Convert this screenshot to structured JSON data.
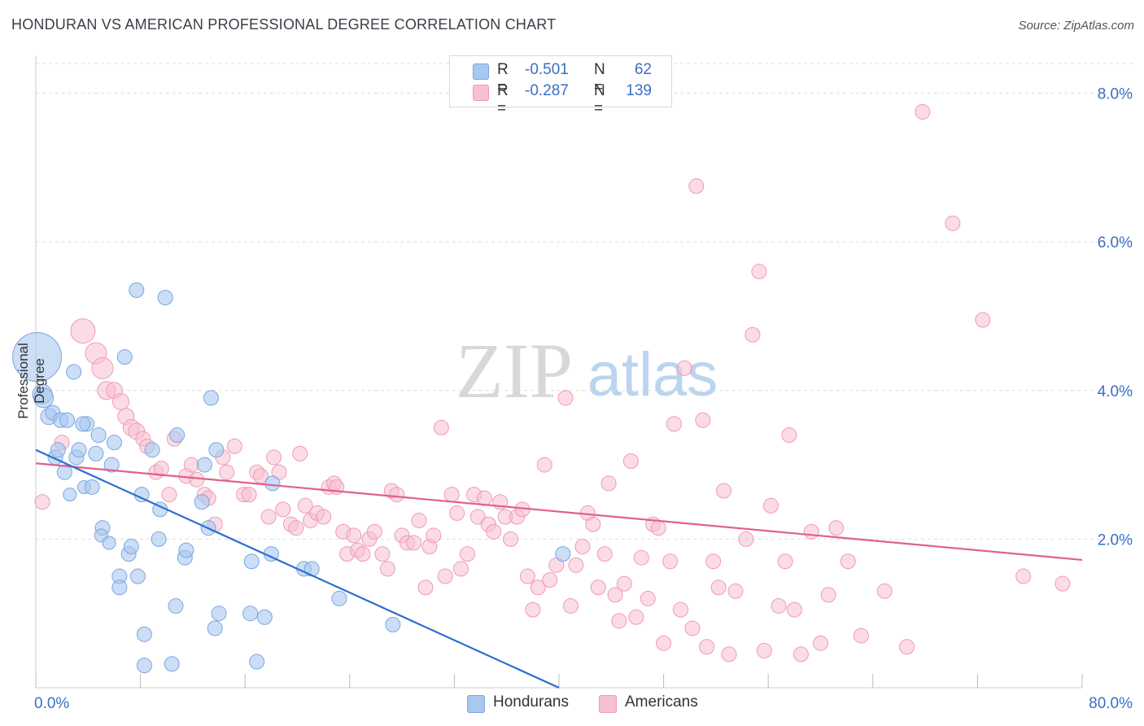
{
  "title": "HONDURAN VS AMERICAN PROFESSIONAL DEGREE CORRELATION CHART",
  "source": "Source: ZipAtlas.com",
  "watermark": {
    "zip": "ZIP",
    "atlas": "atlas"
  },
  "colors": {
    "blue_fill": "#a9c8f0",
    "blue_stroke": "#7aa6e0",
    "blue_line": "#2b6fd0",
    "pink_fill": "#f7c0d0",
    "pink_stroke": "#ef9ab4",
    "pink_line": "#e0608c",
    "tick_text": "#3a6fc4",
    "grid": "#dedede"
  },
  "stats": {
    "honduran": {
      "r_label": "R =",
      "r_value": "-0.501",
      "n_label": "N =",
      "n_value": "62"
    },
    "american": {
      "r_label": "R =",
      "r_value": "-0.287",
      "n_label": "N =",
      "n_value": "139"
    }
  },
  "legend": {
    "honduran": "Hondurans",
    "american": "Americans"
  },
  "chart_data": {
    "type": "scatter",
    "title": "HONDURAN VS AMERICAN PROFESSIONAL DEGREE CORRELATION CHART",
    "xlabel": "",
    "ylabel": "Professional Degree",
    "xlim": [
      0,
      80
    ],
    "ylim": [
      0,
      8.4
    ],
    "x_tick_labels": {
      "min": "0.0%",
      "max": "80.0%"
    },
    "y_ticks": [
      {
        "value": 2,
        "label": "2.0%"
      },
      {
        "value": 4,
        "label": "4.0%"
      },
      {
        "value": 6,
        "label": "6.0%"
      },
      {
        "value": 8,
        "label": "8.0%"
      }
    ],
    "grid": true,
    "legend_position": "bottom",
    "series": [
      {
        "name": "Hondurans",
        "r": -0.501,
        "n": 62,
        "trend": [
          [
            0,
            3.2
          ],
          [
            40,
            0.0
          ]
        ],
        "points": [
          [
            0.1,
            4.45,
            30
          ],
          [
            0.5,
            3.95,
            12
          ],
          [
            0.6,
            3.9,
            12
          ],
          [
            1.0,
            3.65,
            10
          ],
          [
            1.3,
            3.7,
            9
          ],
          [
            1.5,
            3.1,
            9
          ],
          [
            1.7,
            3.2,
            9
          ],
          [
            1.9,
            3.6,
            9
          ],
          [
            2.2,
            2.9,
            9
          ],
          [
            2.6,
            2.6,
            8
          ],
          [
            2.9,
            4.25,
            9
          ],
          [
            3.1,
            3.1,
            9
          ],
          [
            2.4,
            3.6,
            9
          ],
          [
            3.3,
            3.2,
            9
          ],
          [
            3.7,
            2.7,
            8
          ],
          [
            3.9,
            3.55,
            9
          ],
          [
            4.3,
            2.7,
            9
          ],
          [
            4.6,
            3.15,
            9
          ],
          [
            4.8,
            3.4,
            9
          ],
          [
            5.1,
            2.15,
            9
          ],
          [
            5.0,
            2.05,
            8
          ],
          [
            5.6,
            1.95,
            8
          ],
          [
            5.8,
            3.0,
            9
          ],
          [
            6.0,
            3.3,
            9
          ],
          [
            6.4,
            1.5,
            9
          ],
          [
            6.4,
            1.35,
            9
          ],
          [
            6.8,
            4.45,
            9
          ],
          [
            7.1,
            1.8,
            9
          ],
          [
            7.3,
            1.9,
            9
          ],
          [
            7.7,
            5.35,
            9
          ],
          [
            7.8,
            1.5,
            9
          ],
          [
            8.1,
            2.6,
            9
          ],
          [
            8.3,
            0.3,
            9
          ],
          [
            8.3,
            0.72,
            9
          ],
          [
            8.9,
            3.2,
            9
          ],
          [
            9.4,
            2.0,
            9
          ],
          [
            9.5,
            2.4,
            9
          ],
          [
            9.9,
            5.25,
            9
          ],
          [
            10.4,
            0.32,
            9
          ],
          [
            10.7,
            1.1,
            9
          ],
          [
            10.8,
            3.4,
            9
          ],
          [
            11.4,
            1.75,
            9
          ],
          [
            11.5,
            1.85,
            9
          ],
          [
            12.7,
            2.5,
            9
          ],
          [
            12.9,
            3.0,
            9
          ],
          [
            13.2,
            2.15,
            9
          ],
          [
            13.4,
            3.9,
            9
          ],
          [
            13.7,
            0.8,
            9
          ],
          [
            13.8,
            3.2,
            9
          ],
          [
            14.0,
            1.0,
            9
          ],
          [
            16.4,
            1.0,
            9
          ],
          [
            16.5,
            1.7,
            9
          ],
          [
            16.9,
            0.35,
            9
          ],
          [
            17.5,
            0.95,
            9
          ],
          [
            18.0,
            1.8,
            9
          ],
          [
            18.1,
            2.75,
            9
          ],
          [
            20.5,
            1.6,
            9
          ],
          [
            21.1,
            1.6,
            9
          ],
          [
            23.2,
            1.2,
            9
          ],
          [
            27.3,
            0.85,
            9
          ],
          [
            40.3,
            1.8,
            9
          ],
          [
            3.6,
            3.55,
            9
          ]
        ]
      },
      {
        "name": "Americans",
        "r": -0.287,
        "n": 139,
        "trend": [
          [
            0,
            3.02
          ],
          [
            80,
            1.72
          ]
        ],
        "points": [
          [
            0.5,
            2.5,
            9
          ],
          [
            2.0,
            3.3,
            9
          ],
          [
            3.6,
            4.8,
            15
          ],
          [
            4.6,
            4.5,
            13
          ],
          [
            5.1,
            4.3,
            13
          ],
          [
            5.4,
            4.0,
            11
          ],
          [
            6.0,
            4.0,
            10
          ],
          [
            6.5,
            3.85,
            10
          ],
          [
            6.9,
            3.65,
            10
          ],
          [
            7.3,
            3.5,
            10
          ],
          [
            7.7,
            3.45,
            10
          ],
          [
            8.2,
            3.35,
            9
          ],
          [
            8.5,
            3.25,
            9
          ],
          [
            9.2,
            2.9,
            9
          ],
          [
            9.6,
            2.95,
            9
          ],
          [
            10.2,
            2.6,
            9
          ],
          [
            10.6,
            3.35,
            9
          ],
          [
            11.5,
            2.85,
            9
          ],
          [
            11.9,
            3.0,
            9
          ],
          [
            12.3,
            2.8,
            9
          ],
          [
            12.9,
            2.6,
            9
          ],
          [
            13.2,
            2.55,
            9
          ],
          [
            13.7,
            2.2,
            9
          ],
          [
            14.3,
            3.1,
            9
          ],
          [
            14.6,
            2.9,
            9
          ],
          [
            15.2,
            3.25,
            9
          ],
          [
            15.9,
            2.6,
            9
          ],
          [
            16.3,
            2.6,
            9
          ],
          [
            16.9,
            2.9,
            9
          ],
          [
            17.2,
            2.85,
            9
          ],
          [
            17.8,
            2.3,
            9
          ],
          [
            18.2,
            3.1,
            9
          ],
          [
            18.6,
            2.9,
            9
          ],
          [
            18.9,
            2.4,
            9
          ],
          [
            19.5,
            2.2,
            9
          ],
          [
            19.9,
            2.15,
            9
          ],
          [
            20.2,
            3.15,
            9
          ],
          [
            20.6,
            2.45,
            9
          ],
          [
            21.0,
            2.25,
            9
          ],
          [
            21.5,
            2.35,
            9
          ],
          [
            22.0,
            2.3,
            9
          ],
          [
            22.4,
            2.7,
            9
          ],
          [
            22.8,
            2.75,
            9
          ],
          [
            23.0,
            2.7,
            9
          ],
          [
            23.5,
            2.1,
            9
          ],
          [
            23.8,
            1.8,
            9
          ],
          [
            24.3,
            2.05,
            9
          ],
          [
            24.6,
            1.85,
            9
          ],
          [
            25.0,
            1.8,
            9
          ],
          [
            25.5,
            2.0,
            9
          ],
          [
            25.9,
            2.1,
            9
          ],
          [
            26.5,
            1.8,
            9
          ],
          [
            26.9,
            1.6,
            9
          ],
          [
            27.2,
            2.65,
            9
          ],
          [
            27.6,
            2.6,
            9
          ],
          [
            28.0,
            2.05,
            9
          ],
          [
            28.4,
            1.95,
            9
          ],
          [
            28.9,
            1.95,
            9
          ],
          [
            29.3,
            2.25,
            9
          ],
          [
            29.8,
            1.35,
            9
          ],
          [
            30.1,
            1.9,
            9
          ],
          [
            30.4,
            2.05,
            9
          ],
          [
            31.0,
            3.5,
            9
          ],
          [
            31.3,
            1.5,
            9
          ],
          [
            31.8,
            2.6,
            9
          ],
          [
            32.2,
            2.35,
            9
          ],
          [
            32.5,
            1.6,
            9
          ],
          [
            33.0,
            1.8,
            9
          ],
          [
            33.5,
            2.6,
            9
          ],
          [
            33.8,
            2.3,
            9
          ],
          [
            34.3,
            2.55,
            9
          ],
          [
            34.6,
            2.2,
            9
          ],
          [
            35.0,
            2.1,
            9
          ],
          [
            35.5,
            2.5,
            9
          ],
          [
            35.9,
            2.3,
            9
          ],
          [
            36.3,
            2.0,
            9
          ],
          [
            36.8,
            2.3,
            9
          ],
          [
            37.2,
            2.4,
            9
          ],
          [
            37.6,
            1.5,
            9
          ],
          [
            38.0,
            1.05,
            9
          ],
          [
            38.4,
            1.35,
            9
          ],
          [
            38.9,
            3.0,
            9
          ],
          [
            39.3,
            1.45,
            9
          ],
          [
            39.8,
            1.65,
            9
          ],
          [
            40.5,
            3.9,
            9
          ],
          [
            40.9,
            1.1,
            9
          ],
          [
            41.3,
            1.65,
            9
          ],
          [
            41.8,
            1.9,
            9
          ],
          [
            42.2,
            2.35,
            9
          ],
          [
            42.6,
            2.2,
            9
          ],
          [
            43.0,
            1.35,
            9
          ],
          [
            43.5,
            1.8,
            9
          ],
          [
            43.8,
            2.75,
            9
          ],
          [
            44.3,
            1.25,
            9
          ],
          [
            44.6,
            0.9,
            9
          ],
          [
            45.0,
            1.4,
            9
          ],
          [
            45.5,
            3.05,
            9
          ],
          [
            45.9,
            0.95,
            9
          ],
          [
            46.3,
            1.75,
            9
          ],
          [
            46.8,
            1.2,
            9
          ],
          [
            47.2,
            2.2,
            9
          ],
          [
            47.6,
            2.15,
            9
          ],
          [
            48.0,
            0.6,
            9
          ],
          [
            48.5,
            1.7,
            9
          ],
          [
            48.8,
            3.55,
            9
          ],
          [
            49.3,
            1.05,
            9
          ],
          [
            49.6,
            4.3,
            9
          ],
          [
            50.2,
            0.8,
            9
          ],
          [
            50.5,
            6.75,
            9
          ],
          [
            51.0,
            3.6,
            9
          ],
          [
            51.3,
            0.55,
            9
          ],
          [
            51.8,
            1.7,
            9
          ],
          [
            52.2,
            1.35,
            9
          ],
          [
            52.6,
            2.65,
            9
          ],
          [
            53.0,
            0.45,
            9
          ],
          [
            53.5,
            1.3,
            9
          ],
          [
            54.3,
            2.0,
            9
          ],
          [
            54.8,
            4.75,
            9
          ],
          [
            55.3,
            5.6,
            9
          ],
          [
            55.7,
            0.5,
            9
          ],
          [
            56.2,
            2.45,
            9
          ],
          [
            56.8,
            1.1,
            9
          ],
          [
            57.3,
            1.7,
            9
          ],
          [
            57.6,
            3.4,
            9
          ],
          [
            58.0,
            1.05,
            9
          ],
          [
            58.5,
            0.45,
            9
          ],
          [
            59.3,
            2.1,
            9
          ],
          [
            60.0,
            0.6,
            9
          ],
          [
            60.6,
            1.25,
            9
          ],
          [
            61.2,
            2.15,
            9
          ],
          [
            62.1,
            1.7,
            9
          ],
          [
            63.1,
            0.7,
            9
          ],
          [
            64.9,
            1.3,
            9
          ],
          [
            66.6,
            0.55,
            9
          ],
          [
            67.8,
            7.75,
            9
          ],
          [
            70.1,
            6.25,
            9
          ],
          [
            72.4,
            4.95,
            9
          ],
          [
            75.5,
            1.5,
            9
          ],
          [
            78.5,
            1.4,
            9
          ]
        ]
      }
    ]
  }
}
